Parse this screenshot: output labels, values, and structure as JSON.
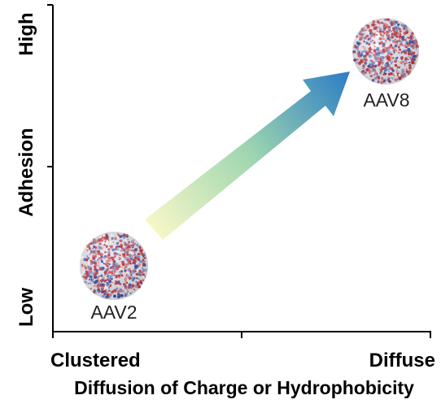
{
  "diagram": {
    "y_axis": {
      "label": "Adhesion",
      "high_label": "High",
      "low_label": "Low"
    },
    "x_axis": {
      "label": "Diffusion of Charge or Hydrophobicity",
      "left_label": "Clustered",
      "right_label": "Diffuse"
    },
    "particles": [
      {
        "id": "aav2",
        "label": "AAV2",
        "position": "low-clustered"
      },
      {
        "id": "aav8",
        "label": "AAV8",
        "position": "high-diffuse"
      }
    ],
    "arrow": {
      "gradient_start": "#f8f8c8",
      "gradient_mid": "#9fd6b0",
      "gradient_end": "#2f7fc4"
    },
    "colors": {
      "axis": "#000000",
      "particle_red": "#c0303a",
      "particle_blue": "#2a4fb0",
      "particle_white": "#e8e8ee"
    }
  }
}
